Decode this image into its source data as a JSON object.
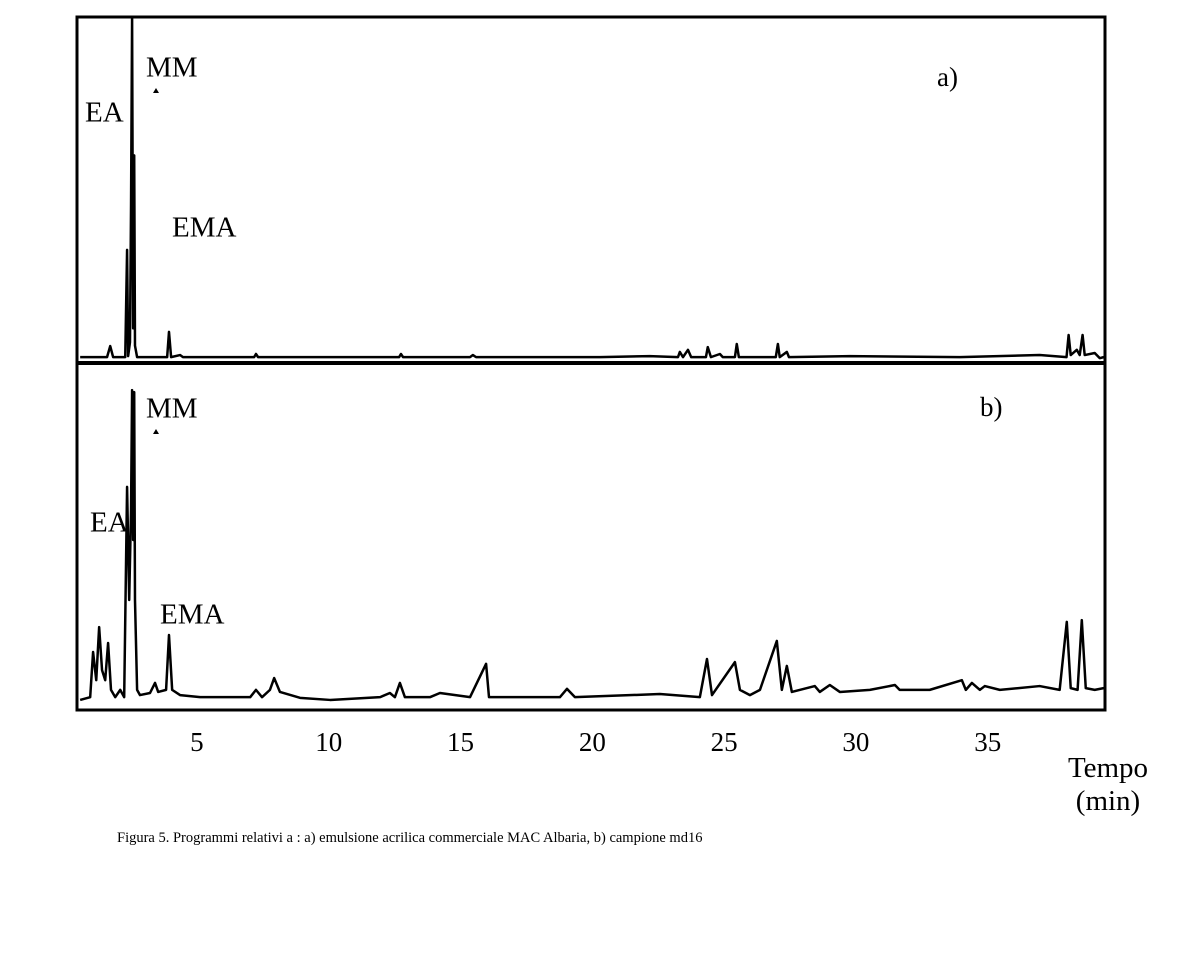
{
  "chart_data": [
    {
      "type": "line",
      "title": "a)",
      "color": "#000000",
      "annotations": [
        "EA",
        "MM",
        "EMA"
      ],
      "xlim": [
        0.45,
        39.45
      ],
      "ylim": [
        0,
        100
      ],
      "x": [
        0.57,
        1.59,
        1.71,
        1.82,
        2.28,
        2.35,
        2.39,
        2.46,
        2.5,
        2.54,
        2.58,
        2.62,
        2.65,
        2.73,
        3.6,
        3.87,
        3.94,
        4.02,
        4.36,
        4.47,
        7.17,
        7.24,
        7.32,
        12.67,
        12.74,
        12.82,
        15.36,
        15.47,
        15.59,
        20.29,
        22.18,
        23.25,
        23.32,
        23.44,
        23.63,
        23.75,
        24.31,
        24.38,
        24.5,
        24.84,
        24.95,
        25.41,
        25.48,
        25.56,
        26.96,
        27.04,
        27.11,
        27.38,
        27.46,
        29.77,
        33.94,
        36.97,
        37.99,
        38.07,
        38.15,
        38.38,
        38.49,
        38.6,
        38.68,
        39.06,
        39.25,
        39.4
      ],
      "values": [
        1.7,
        1.7,
        4.9,
        1.7,
        1.7,
        32.7,
        2,
        6,
        45.7,
        100,
        10,
        60,
        5,
        1.7,
        1.7,
        1.7,
        9,
        1.7,
        2.3,
        1.7,
        1.7,
        2.6,
        1.7,
        1.7,
        2.6,
        1.7,
        1.7,
        2.3,
        1.7,
        1.7,
        2,
        1.7,
        3.2,
        1.7,
        3.8,
        1.7,
        1.7,
        4.6,
        1.7,
        2.6,
        1.7,
        1.7,
        5.5,
        1.7,
        1.7,
        5.5,
        1.7,
        3.2,
        1.7,
        2,
        1.7,
        2.3,
        1.7,
        8.1,
        2.3,
        3.8,
        2.3,
        8.1,
        2.3,
        2.9,
        1.4,
        1.7
      ]
    },
    {
      "type": "line",
      "title": "b)",
      "color": "#000000",
      "annotations": [
        "MM",
        "EA",
        "EMA"
      ],
      "x_label": "Tempo\n(min)",
      "xlim": [
        0.45,
        39.45
      ],
      "ylim": [
        0,
        100
      ],
      "xticks": [
        5,
        10,
        15,
        20,
        25,
        30,
        35
      ],
      "x": [
        0.57,
        0.95,
        1.06,
        1.18,
        1.29,
        1.4,
        1.52,
        1.63,
        1.74,
        1.9,
        2.09,
        2.24,
        2.35,
        2.43,
        2.5,
        2.54,
        2.58,
        2.62,
        2.65,
        2.73,
        2.84,
        3.22,
        3.41,
        3.53,
        3.83,
        3.94,
        4.06,
        4.36,
        5.12,
        7.02,
        7.24,
        7.47,
        7.77,
        7.93,
        8.15,
        8.91,
        10.05,
        11.95,
        12.32,
        12.51,
        12.7,
        12.89,
        13.84,
        14.22,
        15.36,
        15.97,
        16.08,
        18.77,
        19.04,
        19.34,
        22.56,
        24.08,
        24.35,
        24.54,
        25.41,
        25.6,
        25.98,
        26.36,
        27,
        27.19,
        27.38,
        27.57,
        28.44,
        28.63,
        29.01,
        29.39,
        30.53,
        31.48,
        31.66,
        32.8,
        34.02,
        34.17,
        34.4,
        34.7,
        34.89,
        35.46,
        36.97,
        37.73,
        38,
        38.15,
        38.41,
        38.57,
        38.72,
        39.06,
        39.4
      ],
      "values": [
        2.9,
        3.7,
        16.7,
        8.6,
        23.9,
        11.5,
        8.6,
        19.3,
        5.8,
        3.7,
        5.8,
        3.7,
        64.3,
        31.7,
        57.6,
        92.2,
        49,
        91.6,
        31.7,
        5.8,
        4.3,
        4.9,
        7.8,
        5.2,
        5.8,
        21.6,
        5.8,
        4.3,
        3.7,
        3.7,
        5.8,
        3.7,
        5.8,
        9.2,
        5.2,
        3.5,
        2.9,
        3.7,
        4.9,
        3.7,
        7.8,
        3.7,
        3.7,
        4.9,
        3.7,
        13.3,
        3.7,
        3.7,
        6.1,
        3.7,
        4.6,
        3.7,
        14.7,
        4.3,
        13.8,
        5.8,
        4.3,
        5.8,
        19.9,
        5.8,
        12.7,
        5.2,
        6.9,
        5.2,
        7.2,
        5.2,
        5.8,
        7.2,
        5.8,
        5.8,
        8.6,
        5.8,
        7.8,
        5.8,
        6.9,
        5.8,
        6.9,
        5.8,
        25.4,
        6.3,
        5.8,
        25.9,
        6.3,
        5.8,
        6.3
      ]
    }
  ],
  "caption": "Figura 5. Programmi relativi a : a) emulsione acrilica commerciale MAC Albaria, b) campione md16"
}
